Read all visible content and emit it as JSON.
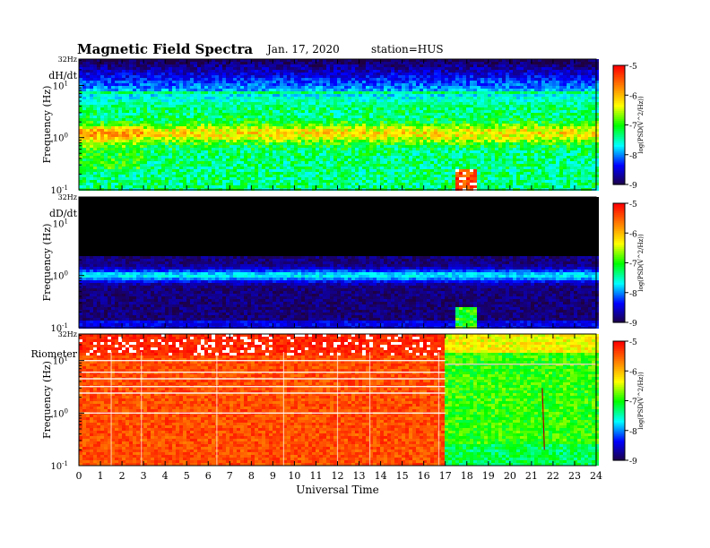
{
  "header": {
    "title": "Magnetic Field Spectra",
    "date": "Jan. 17, 2020",
    "station": "station=HUS"
  },
  "colors": {
    "palette": [
      "#1e0040",
      "#0000ff",
      "#00ffff",
      "#00ff00",
      "#ffff00",
      "#ff8000",
      "#ff0000",
      "#ffffff"
    ],
    "black": "#000000"
  },
  "chart_data": [
    {
      "type": "heatmap",
      "panel_label": "dH/dt",
      "top_label": "32Hz",
      "ylabel": "Frequency  (Hz)",
      "y_tick_labels": [
        "10^-1",
        "10^0",
        "10^1"
      ],
      "ylim_hz": [
        0.1,
        32
      ],
      "y_scale": "log",
      "xlim_ut_hours": [
        0,
        24
      ],
      "colorbar": {
        "label": "log(PSD(V^2/Hz))",
        "range": [
          -9,
          -5
        ],
        "tick_labels": [
          "-5",
          "-6",
          "-7",
          "-8",
          "-9"
        ]
      },
      "features": [
        {
          "description": "low power band near top",
          "freq_hz": 25,
          "log_psd": -8.8
        },
        {
          "description": "broad high power band",
          "freq_hz": 1.2,
          "log_psd": -6.2
        },
        {
          "description": "green background",
          "freq_hz": 0.2,
          "log_psd": -7.3
        },
        {
          "description": "burst",
          "ut_hours": [
            17.5,
            18.5
          ],
          "freq_hz": 0.15,
          "log_psd": -5.2
        }
      ]
    },
    {
      "type": "heatmap",
      "panel_label": "dD/dt",
      "top_label": "32Hz",
      "ylabel": "Frequency  (Hz)",
      "y_tick_labels": [
        "10^-1",
        "10^0",
        "10^1"
      ],
      "ylim_hz": [
        0.1,
        32
      ],
      "y_scale": "log",
      "xlim_ut_hours": [
        0,
        24
      ],
      "colorbar": {
        "label": "log(PSD(V^2/Hz))",
        "range": [
          -9,
          -5
        ],
        "tick_labels": [
          "-5",
          "-6",
          "-7",
          "-8",
          "-9"
        ]
      },
      "features": [
        {
          "description": "no signal region",
          "freq_range_hz": [
            2.5,
            32
          ],
          "log_psd": -9.5
        },
        {
          "description": "blue band",
          "freq_hz": 1.0,
          "log_psd": -8.2
        },
        {
          "description": "dark blue background",
          "freq_hz": 0.3,
          "log_psd": -8.8
        },
        {
          "description": "burst",
          "ut_hours": [
            17.5,
            18.5
          ],
          "freq_hz": 0.15,
          "log_psd": -7.0
        }
      ]
    },
    {
      "type": "heatmap",
      "panel_label": "Riometer",
      "top_label": "32Hz",
      "ylabel": "Frequency  (Hz)",
      "y_tick_labels": [
        "10^-1",
        "10^0",
        "10^1"
      ],
      "ylim_hz": [
        0.1,
        32
      ],
      "y_scale": "log",
      "xlim_ut_hours": [
        0,
        24
      ],
      "xlabel": "Universal Time",
      "x_ticks": [
        0,
        1,
        2,
        3,
        4,
        5,
        6,
        7,
        8,
        9,
        10,
        11,
        12,
        13,
        14,
        15,
        16,
        17,
        18,
        19,
        20,
        21,
        22,
        23,
        24
      ],
      "colorbar": {
        "label": "log(PSD(V^2/Hz))",
        "range": [
          -9,
          -5
        ],
        "tick_labels": [
          "-5",
          "-6",
          "-7",
          "-8",
          "-9"
        ]
      },
      "features": [
        {
          "description": "high power before transition",
          "ut_hours": [
            0,
            17
          ],
          "log_psd": -5.4
        },
        {
          "description": "lower power after transition",
          "ut_hours": [
            17,
            24
          ],
          "log_psd": -6.9
        },
        {
          "description": "harmonic lines",
          "ut_hours": [
            0,
            17
          ],
          "freq_hz": [
            10,
            6,
            4.5,
            3.2,
            2.4,
            1.0
          ]
        },
        {
          "description": "persistent line",
          "ut_hours": [
            17,
            24
          ],
          "freq_hz": 8.5
        },
        {
          "description": "streak",
          "ut_hours": [
            21.5,
            21.6
          ],
          "freq_range_hz": [
            0.2,
            3
          ]
        }
      ]
    }
  ]
}
